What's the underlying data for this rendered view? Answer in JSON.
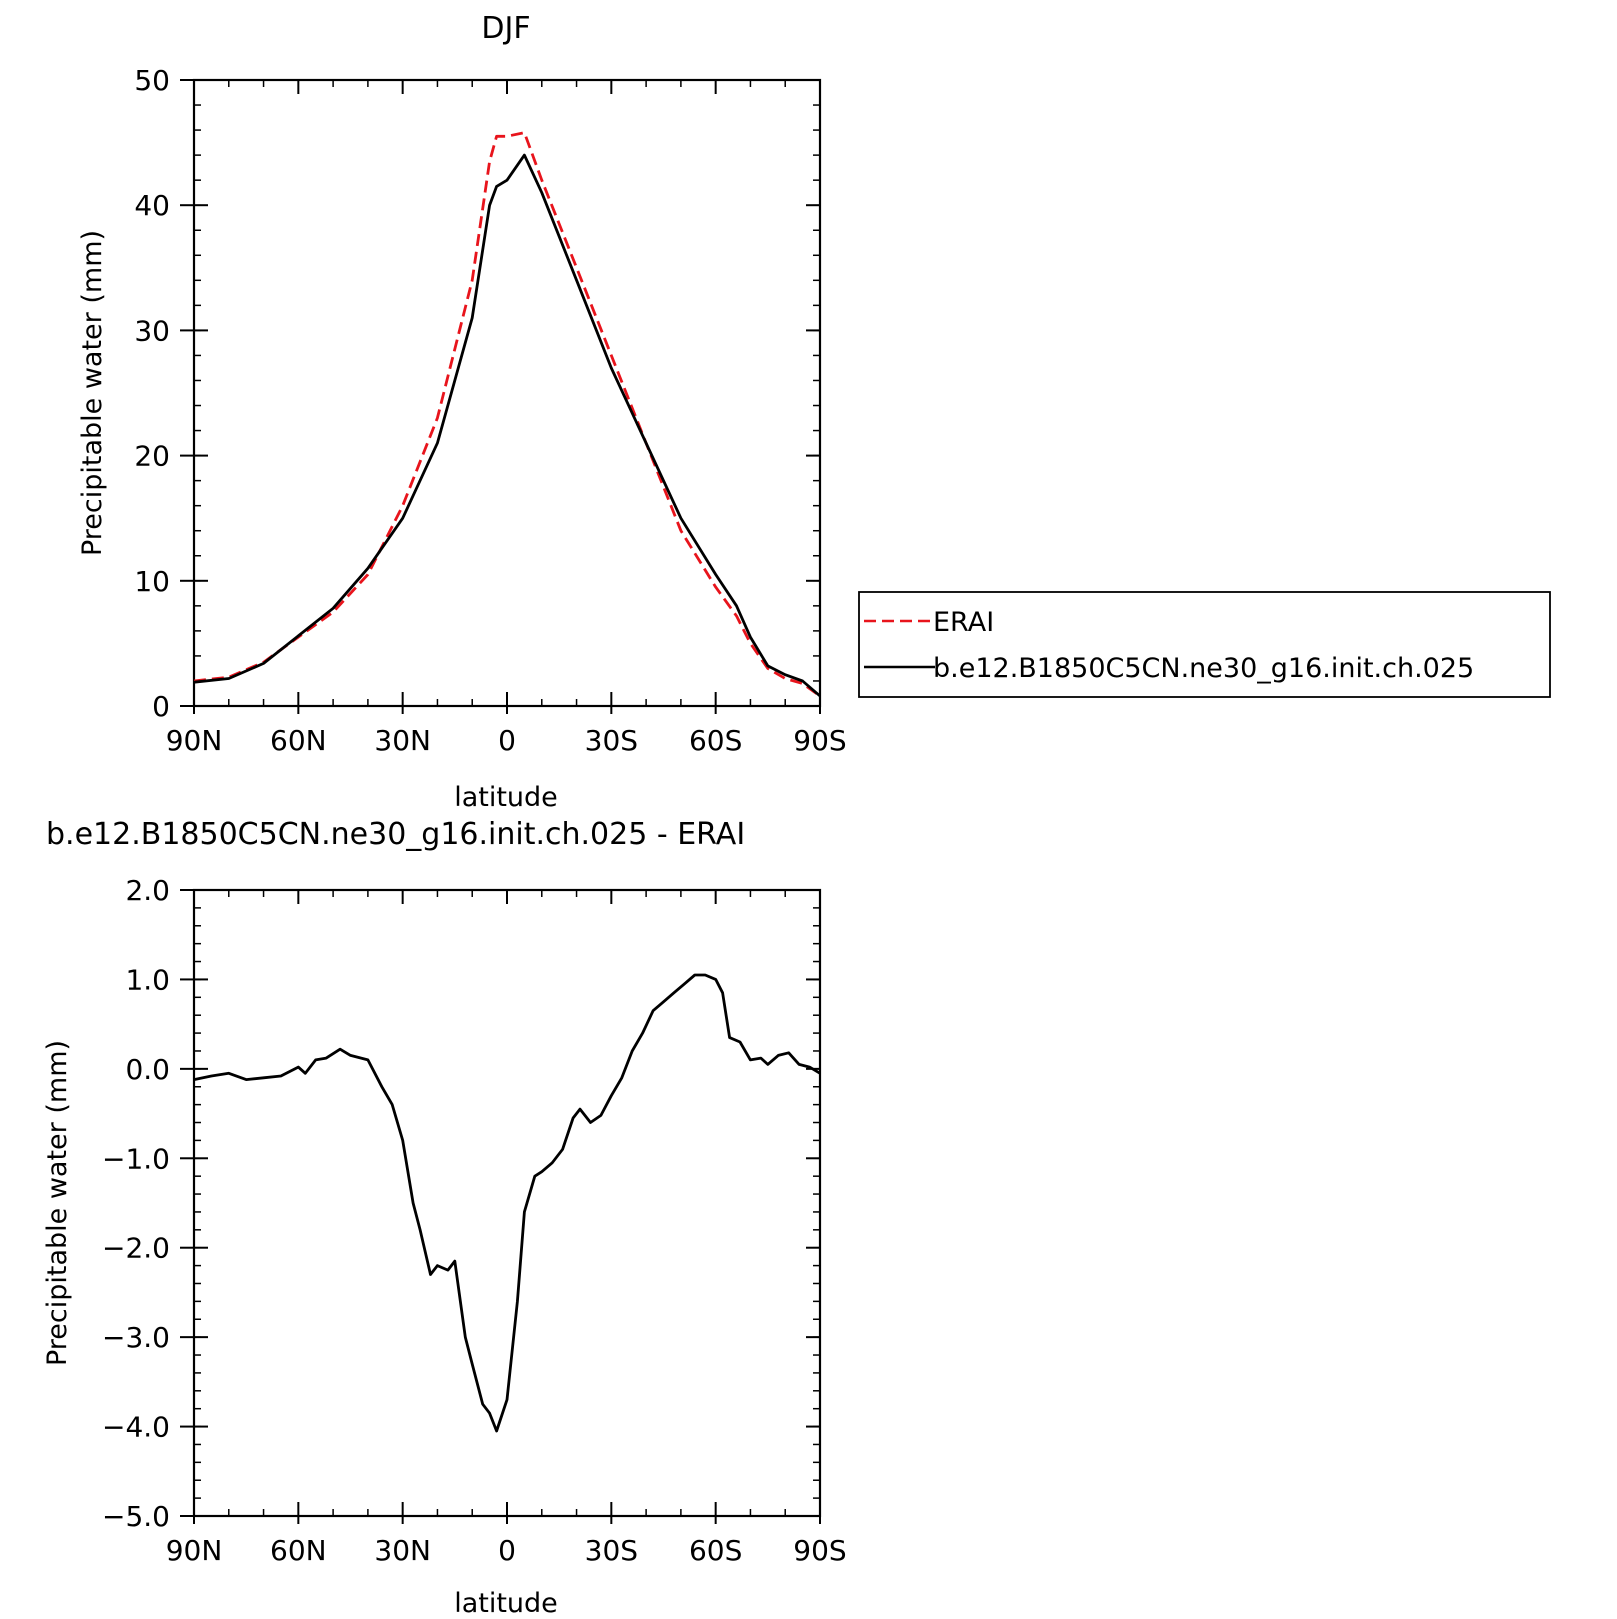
{
  "chart_data": [
    {
      "type": "line",
      "title": "DJF",
      "xlabel": "latitude",
      "ylabel": "Precipitable water (mm)",
      "xlim": [
        90,
        -90
      ],
      "ylim": [
        0,
        50
      ],
      "xticks": [
        90,
        60,
        30,
        0,
        -30,
        -60,
        -90
      ],
      "xtick_labels": [
        "90N",
        "60N",
        "30N",
        "0",
        "30S",
        "60S",
        "90S"
      ],
      "yticks": [
        0,
        10,
        20,
        30,
        40,
        50
      ],
      "ytick_labels": [
        "0",
        "10",
        "20",
        "30",
        "40",
        "50"
      ],
      "grid": false,
      "legend_position": "right",
      "series": [
        {
          "name": "ERAI",
          "color": "#e8141c",
          "dash": "dashed",
          "x": [
            90,
            80,
            70,
            60,
            50,
            40,
            30,
            20,
            10,
            5,
            3,
            0,
            -5,
            -10,
            -20,
            -30,
            -40,
            -50,
            -60,
            -66,
            -70,
            -75,
            -80,
            -85,
            -90
          ],
          "y": [
            2.0,
            2.3,
            3.5,
            5.5,
            7.5,
            10.5,
            16,
            23,
            34,
            43.5,
            45.5,
            45.5,
            45.8,
            42,
            35,
            28,
            21,
            14,
            9.5,
            7.2,
            5,
            3,
            2.2,
            1.8,
            0.8
          ]
        },
        {
          "name": "b.e12.B1850C5CN.ne30_g16.init.ch.025",
          "color": "#000000",
          "dash": "solid",
          "x": [
            90,
            80,
            70,
            60,
            50,
            40,
            30,
            20,
            10,
            5,
            3,
            0,
            -5,
            -10,
            -20,
            -30,
            -40,
            -50,
            -60,
            -66,
            -70,
            -75,
            -80,
            -85,
            -90
          ],
          "y": [
            1.9,
            2.2,
            3.4,
            5.6,
            7.8,
            11,
            15,
            21,
            31,
            40,
            41.5,
            42,
            44,
            41,
            34,
            27,
            21,
            15,
            10.5,
            8,
            5.5,
            3.2,
            2.5,
            2,
            0.8
          ]
        }
      ]
    },
    {
      "type": "line",
      "title": "b.e12.B1850C5CN.ne30_g16.init.ch.025 - ERAI",
      "xlabel": "latitude",
      "ylabel": "Precipitable water (mm)",
      "xlim": [
        90,
        -90
      ],
      "ylim": [
        -5.0,
        2.0
      ],
      "xticks": [
        90,
        60,
        30,
        0,
        -30,
        -60,
        -90
      ],
      "xtick_labels": [
        "90N",
        "60N",
        "30N",
        "0",
        "30S",
        "60S",
        "90S"
      ],
      "yticks": [
        2.0,
        1.0,
        0.0,
        -1.0,
        -2.0,
        -3.0,
        -4.0,
        -5.0
      ],
      "ytick_labels": [
        "2.0",
        "1.0",
        "0.0",
        "−1.0",
        "−2.0",
        "−3.0",
        "−4.0",
        "−5.0"
      ],
      "grid": false,
      "series": [
        {
          "color": "#000000",
          "dash": "solid",
          "x": [
            90,
            85,
            80,
            75,
            70,
            65,
            60,
            58,
            55,
            52,
            48,
            45,
            40,
            36,
            33,
            30,
            27,
            25,
            22,
            20,
            17,
            15,
            12,
            10,
            7,
            5,
            3,
            0,
            -3,
            -5,
            -8,
            -10,
            -13,
            -16,
            -19,
            -21,
            -24,
            -27,
            -30,
            -33,
            -36,
            -39,
            -42,
            -45,
            -48,
            -51,
            -54,
            -57,
            -60,
            -62,
            -64,
            -67,
            -70,
            -73,
            -75,
            -78,
            -81,
            -84,
            -87,
            -90
          ],
          "y": [
            -0.12,
            -0.08,
            -0.05,
            -0.12,
            -0.1,
            -0.08,
            0.02,
            -0.05,
            0.1,
            0.12,
            0.22,
            0.15,
            0.1,
            -0.2,
            -0.4,
            -0.8,
            -1.5,
            -1.8,
            -2.3,
            -2.2,
            -2.25,
            -2.15,
            -3.0,
            -3.3,
            -3.75,
            -3.85,
            -4.05,
            -3.7,
            -2.6,
            -1.6,
            -1.2,
            -1.15,
            -1.05,
            -0.9,
            -0.55,
            -0.45,
            -0.6,
            -0.52,
            -0.3,
            -0.1,
            0.2,
            0.4,
            0.65,
            0.75,
            0.85,
            0.95,
            1.05,
            1.05,
            1.0,
            0.85,
            0.35,
            0.3,
            0.1,
            0.12,
            0.05,
            0.15,
            0.18,
            0.05,
            0.02,
            -0.05
          ]
        }
      ]
    }
  ]
}
